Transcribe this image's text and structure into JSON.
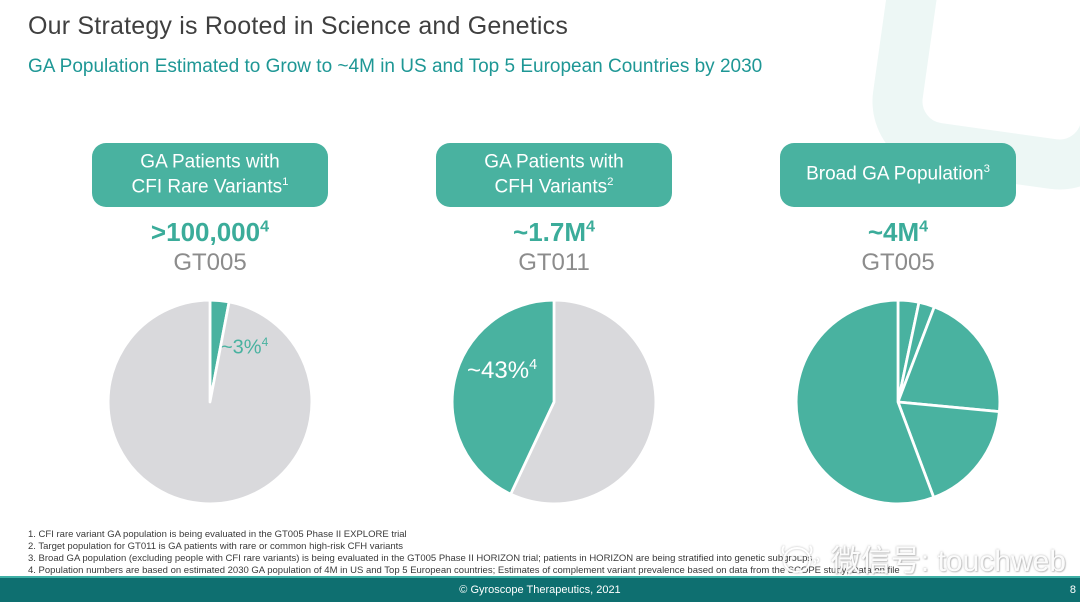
{
  "header": {
    "title": "Our Strategy is Rooted in Science and Genetics",
    "subtitle": "GA Population Estimated to Grow to ~4M in US and Top 5 European Countries by 2030"
  },
  "colors": {
    "accent_teal": "#49B2A0",
    "value_teal": "#3BAC9A",
    "subtitle_teal": "#1E9795",
    "footer_teal": "#0E6F70",
    "pie_gray": "#D9D9DC",
    "program_gray": "#8C8C8C",
    "title_gray": "#3F3F3F"
  },
  "columns": [
    {
      "box_line1": "GA Patients with",
      "box_line1_sup": "",
      "box_line2": "CFI Rare Variants",
      "box_line2_sup": "1",
      "value": ">100,000",
      "value_sup": "4",
      "program": "GT005",
      "pie_label": "~3%",
      "pie_label_sup": "4"
    },
    {
      "box_line1": "GA Patients with",
      "box_line1_sup": "",
      "box_line2": "CFH Variants",
      "box_line2_sup": "2",
      "value": "~1.7M",
      "value_sup": "4",
      "program": "GT011",
      "pie_label": "~43%",
      "pie_label_sup": "4"
    },
    {
      "box_line1": "Broad GA Population",
      "box_line1_sup": "3",
      "box_line2": "",
      "box_line2_sup": "",
      "value": "~4M",
      "value_sup": "4",
      "program": "GT005",
      "pie_label": "",
      "pie_label_sup": ""
    }
  ],
  "chart_data": [
    {
      "type": "pie",
      "title": "GA Patients with CFI Rare Variants",
      "program": "GT005",
      "population": ">100,000",
      "start_angle": 0,
      "direction": "clockwise",
      "slices": [
        {
          "value": 3,
          "label": "~3%",
          "color": "#49B2A0"
        },
        {
          "value": 97,
          "label": "",
          "color": "#D9D9DC"
        }
      ]
    },
    {
      "type": "pie",
      "title": "GA Patients with CFH Variants",
      "program": "GT011",
      "population": "~1.7M",
      "start_angle": 0,
      "direction": "clockwise",
      "slices": [
        {
          "value": 57,
          "label": "",
          "color": "#D9D9DC"
        },
        {
          "value": 43,
          "label": "~43%",
          "color": "#49B2A0"
        }
      ]
    },
    {
      "type": "pie",
      "title": "Broad GA Population",
      "program": "GT005",
      "population": "~4M",
      "start_angle": 0,
      "direction": "clockwise",
      "slices": [
        {
          "value": 3.3,
          "label": "",
          "color": "#49B2A0"
        },
        {
          "value": 2.5,
          "label": "",
          "color": "#49B2A0"
        },
        {
          "value": 20.7,
          "label": "",
          "color": "#49B2A0"
        },
        {
          "value": 17.8,
          "label": "",
          "color": "#49B2A0"
        },
        {
          "value": 55.7,
          "label": "",
          "color": "#49B2A0"
        }
      ]
    }
  ],
  "footnotes": [
    "1. CFI rare variant GA population is being evaluated in the GT005 Phase II EXPLORE trial",
    "2. Target population for GT011 is GA patients with rare or common high-risk CFH variants",
    "3. Broad GA population (excluding people with CFI rare variants) is being evaluated in the GT005 Phase II HORIZON trial; patients in HORIZON are being stratified into genetic subgroups",
    "4. Population numbers are based on estimated 2030 GA population of 4M in US and Top 5 European countries; Estimates of complement variant prevalence based on data from the SCOPE study; Data on file"
  ],
  "footer": {
    "copyright": "© Gyroscope Therapeutics, 2021",
    "page_number": "8"
  },
  "watermark": {
    "text": "微信号: touchweb"
  }
}
